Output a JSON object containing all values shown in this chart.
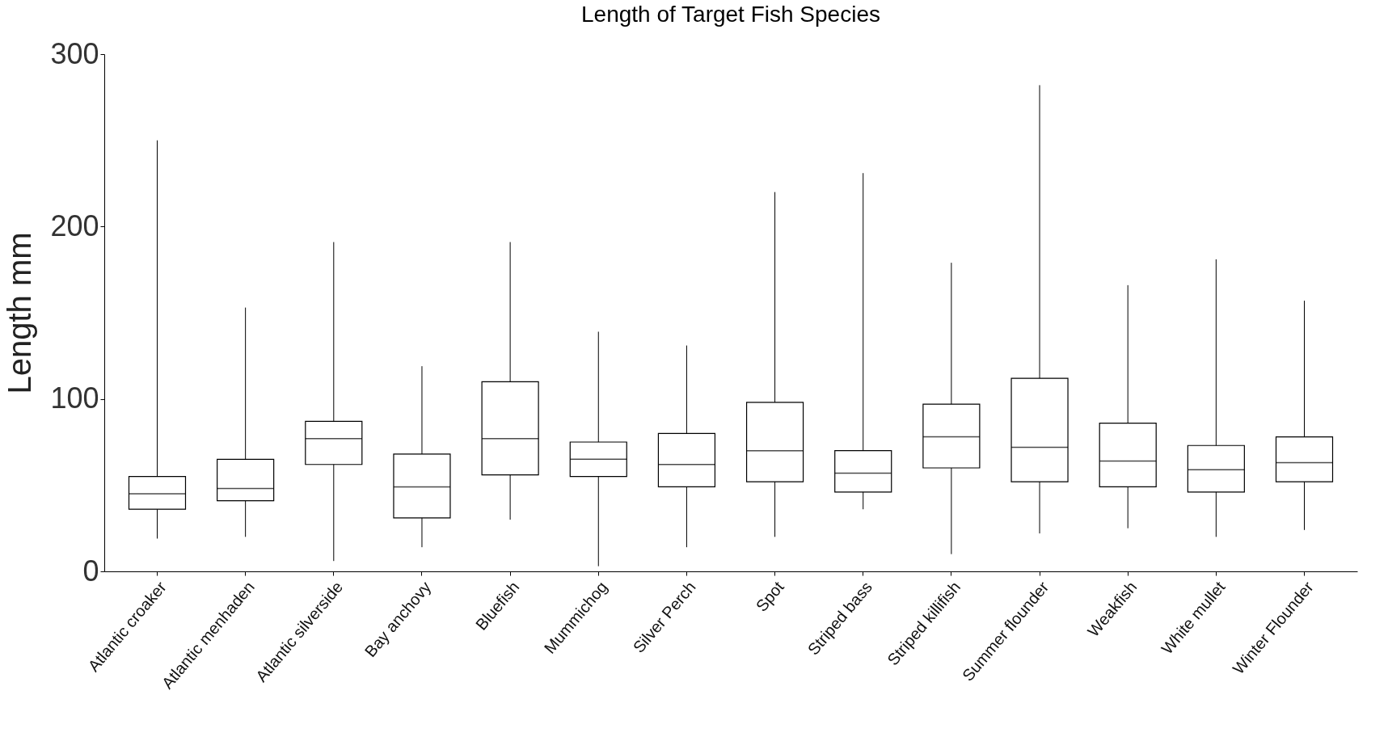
{
  "chart_data": {
    "type": "box",
    "title": "Length of Target Fish Species",
    "ylabel": "Length mm",
    "categories": [
      "Atlantic croaker",
      "Atlantic menhaden",
      "Atlantic silverside",
      "Bay anchovy",
      "Bluefish",
      "Mummichog",
      "Silver Perch",
      "Spot",
      "Striped bass",
      "Striped killifish",
      "Summer flounder",
      "Weakfish",
      "White mullet",
      "Winter Flounder"
    ],
    "boxes": [
      {
        "low": 19,
        "q1": 36,
        "median": 45,
        "q3": 55,
        "high": 250
      },
      {
        "low": 20,
        "q1": 41,
        "median": 48,
        "q3": 65,
        "high": 153
      },
      {
        "low": 6,
        "q1": 62,
        "median": 77,
        "q3": 87,
        "high": 191
      },
      {
        "low": 14,
        "q1": 31,
        "median": 49,
        "q3": 68,
        "high": 119
      },
      {
        "low": 30,
        "q1": 56,
        "median": 77,
        "q3": 110,
        "high": 191
      },
      {
        "low": 3,
        "q1": 55,
        "median": 65,
        "q3": 75,
        "high": 139
      },
      {
        "low": 14,
        "q1": 49,
        "median": 62,
        "q3": 80,
        "high": 131
      },
      {
        "low": 20,
        "q1": 52,
        "median": 70,
        "q3": 98,
        "high": 220
      },
      {
        "low": 36,
        "q1": 46,
        "median": 57,
        "q3": 70,
        "high": 231
      },
      {
        "low": 10,
        "q1": 60,
        "median": 78,
        "q3": 97,
        "high": 179
      },
      {
        "low": 22,
        "q1": 52,
        "median": 72,
        "q3": 112,
        "high": 282
      },
      {
        "low": 25,
        "q1": 49,
        "median": 64,
        "q3": 86,
        "high": 166
      },
      {
        "low": 20,
        "q1": 46,
        "median": 59,
        "q3": 73,
        "high": 181
      },
      {
        "low": 24,
        "q1": 52,
        "median": 63,
        "q3": 78,
        "high": 157
      }
    ],
    "color": "#000000",
    "ylim": [
      0,
      300
    ],
    "yticks": [
      0,
      100,
      200,
      300
    ],
    "grid": false
  }
}
